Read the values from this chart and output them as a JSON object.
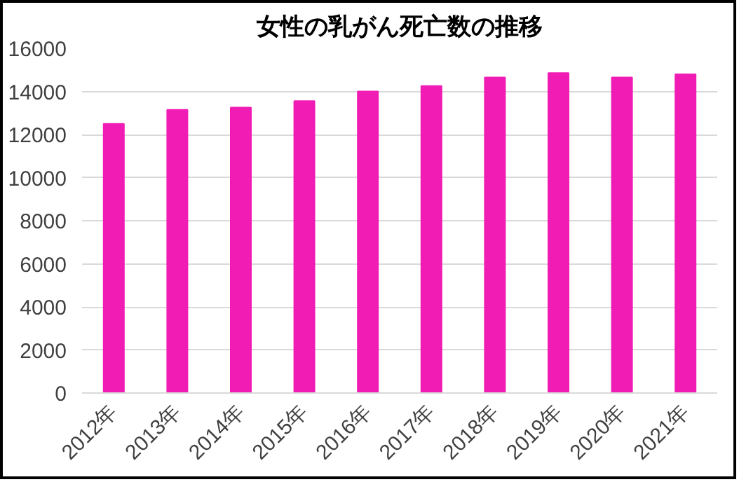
{
  "chart_data": {
    "type": "bar",
    "title": "女性の乳がん死亡数の推移",
    "categories": [
      "2012年",
      "2013年",
      "2014年",
      "2015年",
      "2016年",
      "2017年",
      "2018年",
      "2019年",
      "2020年",
      "2021年"
    ],
    "values": [
      12500,
      13150,
      13250,
      13550,
      14000,
      14250,
      14650,
      14850,
      14650,
      14800
    ],
    "color": "#f01cb4",
    "ylim": [
      0,
      16000
    ],
    "yticks": [
      0,
      2000,
      4000,
      6000,
      8000,
      10000,
      12000,
      14000,
      16000
    ],
    "grid": "y"
  }
}
